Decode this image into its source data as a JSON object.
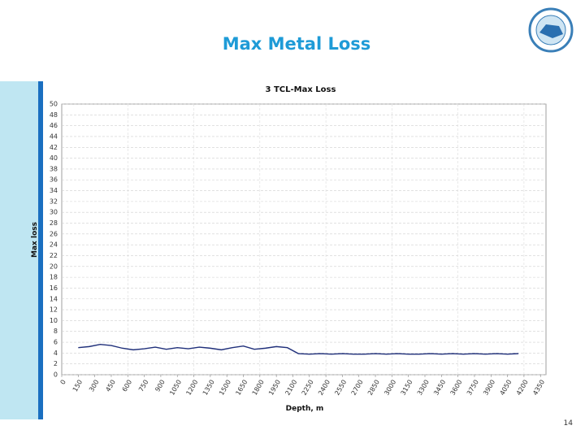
{
  "slide": {
    "title": "Max Metal Loss",
    "page_number": "14"
  },
  "chart_data": {
    "type": "line",
    "title": "3  TCL-Max Loss",
    "x_label": "Depth, m",
    "y_label": "Max loss",
    "color": "#1f2f7a",
    "x": [
      150,
      250,
      350,
      450,
      550,
      650,
      750,
      850,
      950,
      1050,
      1150,
      1250,
      1350,
      1450,
      1550,
      1650,
      1750,
      1850,
      1950,
      2050,
      2150,
      2250,
      2350,
      2450,
      2550,
      2650,
      2750,
      2850,
      2950,
      3050,
      3150,
      3250,
      3350,
      3450,
      3550,
      3650,
      3750,
      3850,
      3950,
      4050,
      4150
    ],
    "values": [
      5.0,
      5.2,
      5.6,
      5.4,
      4.9,
      4.6,
      4.8,
      5.1,
      4.7,
      5.0,
      4.8,
      5.1,
      4.9,
      4.6,
      5.0,
      5.3,
      4.7,
      4.9,
      5.2,
      5.0,
      3.9,
      3.8,
      3.9,
      3.8,
      3.9,
      3.8,
      3.8,
      3.9,
      3.8,
      3.9,
      3.8,
      3.8,
      3.9,
      3.8,
      3.9,
      3.8,
      3.9,
      3.8,
      3.9,
      3.8,
      3.9
    ],
    "xlim": [
      0,
      4400
    ],
    "ylim": [
      0,
      50
    ],
    "xticks": [
      0,
      150,
      300,
      450,
      600,
      750,
      900,
      1050,
      1200,
      1350,
      1500,
      1650,
      1800,
      1950,
      2100,
      2250,
      2400,
      2550,
      2700,
      2850,
      3000,
      3150,
      3300,
      3450,
      3600,
      3750,
      3900,
      4050,
      4200,
      4350
    ],
    "yticks": [
      0,
      2,
      4,
      6,
      8,
      10,
      12,
      14,
      16,
      18,
      20,
      22,
      24,
      26,
      28,
      30,
      32,
      34,
      36,
      38,
      40,
      42,
      44,
      46,
      48,
      50
    ],
    "grid": true
  }
}
